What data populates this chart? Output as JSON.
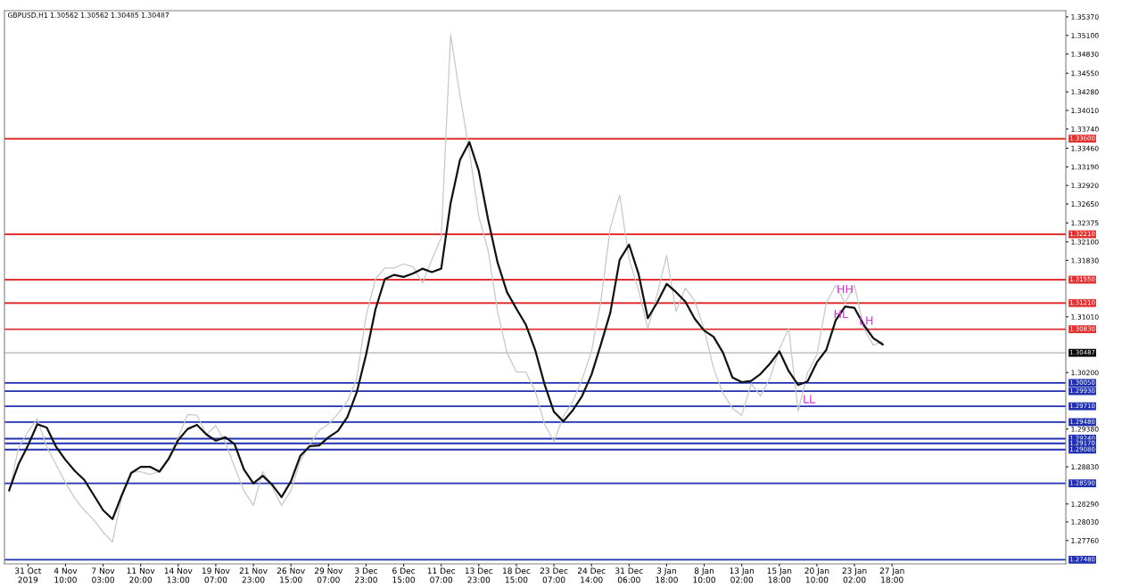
{
  "chart_data": {
    "type": "line",
    "title": "GBPUSD,H1 1.30562 1.30562 1.30485 1.30487",
    "categories": [
      null,
      null,
      "31 Oct 2019",
      null,
      null,
      null,
      "4 Nov 10:00",
      null,
      null,
      null,
      "7 Nov 03:00",
      null,
      null,
      null,
      "11 Nov 20:00",
      null,
      null,
      null,
      "14 Nov 13:00",
      null,
      null,
      null,
      "19 Nov 07:00",
      null,
      null,
      null,
      "21 Nov 23:00",
      null,
      null,
      null,
      "26 Nov 15:00",
      null,
      null,
      null,
      "29 Nov 07:00",
      null,
      null,
      null,
      "3 Dec 23:00",
      null,
      null,
      null,
      "6 Dec 15:00",
      null,
      null,
      null,
      "11 Dec 07:00",
      null,
      null,
      null,
      "13 Dec 23:00",
      null,
      null,
      null,
      "18 Dec 15:00",
      null,
      null,
      null,
      "23 Dec 07:00",
      null,
      null,
      null,
      "24 Dec 14:00",
      null,
      null,
      null,
      "31 Dec 06:00",
      null,
      null,
      null,
      "3 Jan 18:00",
      null,
      null,
      null,
      "8 Jan 10:00",
      null,
      null,
      null,
      "13 Jan 02:00",
      null,
      null,
      null,
      "15 Jan 18:00",
      null,
      null,
      null,
      "20 Jan 10:00",
      null,
      null,
      null,
      "23 Jan 02:00",
      null,
      null,
      null,
      "27 Jan 18:00",
      null,
      null,
      null,
      null,
      null,
      null,
      null,
      null,
      null,
      null,
      null,
      null,
      null,
      null,
      null,
      null,
      null,
      null
    ],
    "series": [
      {
        "color": "#c8c8c8",
        "values": [
          1.2846,
          1.2911,
          1.2934,
          1.2953,
          1.2912,
          1.2886,
          1.286,
          1.2837,
          1.282,
          1.2806,
          1.2788,
          1.2774,
          1.284,
          1.2876,
          1.2876,
          1.2872,
          1.2876,
          1.2897,
          1.2926,
          1.2959,
          1.2958,
          1.293,
          1.2943,
          1.2919,
          1.2883,
          1.2848,
          1.2827,
          1.2876,
          1.2854,
          1.2827,
          1.2848,
          1.2892,
          1.2915,
          1.2936,
          1.2945,
          1.296,
          1.2978,
          1.3011,
          1.3102,
          1.3156,
          1.3172,
          1.3172,
          1.3178,
          1.3174,
          1.315,
          1.3184,
          1.3216,
          1.3511,
          1.3423,
          1.3341,
          1.3247,
          1.3197,
          1.3109,
          1.3049,
          1.3021,
          1.3021,
          1.2994,
          1.2945,
          1.292,
          1.2956,
          1.2978,
          1.301,
          1.3051,
          1.3124,
          1.323,
          1.3278,
          1.3185,
          1.314,
          1.3084,
          1.3134,
          1.319,
          1.3109,
          1.3143,
          1.3124,
          1.3083,
          1.3026,
          1.299,
          1.2968,
          1.2958,
          1.3004,
          1.2986,
          1.3012,
          1.3054,
          1.3084,
          1.2964,
          1.302,
          1.3046,
          1.3121,
          1.3147,
          1.3121,
          1.3147,
          1.3084,
          1.306,
          1.3065,
          null,
          null,
          null,
          null,
          null,
          null,
          null,
          null,
          null,
          null,
          null,
          null,
          null,
          null,
          null,
          null,
          null,
          null,
          null
        ]
      },
      {
        "color": "#111111",
        "values": [
          1.2849,
          1.2887,
          1.2914,
          1.2945,
          1.294,
          1.2912,
          1.2893,
          1.2877,
          1.2864,
          1.2842,
          1.282,
          1.2807,
          1.2842,
          1.2874,
          1.2883,
          1.2883,
          1.2876,
          1.2895,
          1.2922,
          1.2938,
          1.2944,
          1.293,
          1.2921,
          1.2926,
          1.2916,
          1.2879,
          1.2859,
          1.287,
          1.2857,
          1.2839,
          1.2862,
          1.2899,
          1.2913,
          1.2914,
          1.2926,
          1.2935,
          1.2955,
          1.2991,
          1.3046,
          1.3112,
          1.3156,
          1.3162,
          1.3159,
          1.3164,
          1.3171,
          1.3166,
          1.3171,
          1.3266,
          1.3329,
          1.3355,
          1.3313,
          1.3242,
          1.318,
          1.3137,
          1.3113,
          1.309,
          1.3053,
          1.3003,
          1.2963,
          1.2949,
          1.2965,
          1.2986,
          1.3017,
          1.3061,
          1.3107,
          1.3184,
          1.3206,
          1.3164,
          1.3099,
          1.3122,
          1.3149,
          1.3137,
          1.3123,
          1.3098,
          1.3081,
          1.3072,
          1.3049,
          1.3013,
          1.3006,
          1.3008,
          1.3018,
          1.3033,
          1.3051,
          1.3022,
          1.3002,
          1.3007,
          1.3035,
          1.3053,
          1.3096,
          1.3116,
          1.3114,
          1.3089,
          1.307,
          1.3061,
          null,
          null,
          null,
          null,
          null,
          null,
          null,
          null,
          null,
          null,
          null,
          null,
          null,
          null,
          null,
          null,
          null,
          null,
          null
        ]
      }
    ],
    "ylim": [
      1.2742,
      1.3546
    ],
    "yticks": [
      {
        "value": 1.2776,
        "label": "1.27760"
      },
      {
        "value": 1.2803,
        "label": "1.28030"
      },
      {
        "value": 1.2829,
        "label": "1.28290"
      },
      {
        "value": 1.2883,
        "label": "1.28830"
      },
      {
        "value": 1.2938,
        "label": "1.29380"
      },
      {
        "value": 1.302,
        "label": "1.30200"
      },
      {
        "value": 1.3101,
        "label": "1.31010"
      },
      {
        "value": 1.3183,
        "label": "1.31830"
      },
      {
        "value": 1.321,
        "label": "1.32100"
      },
      {
        "value": 1.32375,
        "label": "1.32375"
      },
      {
        "value": 1.3265,
        "label": "1.32650"
      },
      {
        "value": 1.3292,
        "label": "1.32920"
      },
      {
        "value": 1.3319,
        "label": "1.33190"
      },
      {
        "value": 1.3346,
        "label": "1.33460"
      },
      {
        "value": 1.3374,
        "label": "1.33740"
      },
      {
        "value": 1.3401,
        "label": "1.34010"
      },
      {
        "value": 1.3428,
        "label": "1.34280"
      },
      {
        "value": 1.3455,
        "label": "1.34550"
      },
      {
        "value": 1.3483,
        "label": "1.34830"
      },
      {
        "value": 1.351,
        "label": "1.35100"
      },
      {
        "value": 1.3537,
        "label": "1.35370"
      }
    ],
    "grid": false,
    "ref_lines": [
      {
        "axis": "y",
        "value": 1.336,
        "label": "1.33600",
        "color": "#e03030"
      },
      {
        "axis": "y",
        "value": 1.3221,
        "label": "1.32210",
        "color": "#e03030"
      },
      {
        "axis": "y",
        "value": 1.3155,
        "label": "1.31550",
        "color": "#e03030"
      },
      {
        "axis": "y",
        "value": 1.3121,
        "label": "1.31210",
        "color": "#e03030"
      },
      {
        "axis": "y",
        "value": 1.3083,
        "label": "1.30830",
        "color": "#e03030"
      },
      {
        "axis": "y",
        "value": 1.30487,
        "label": "1.30487",
        "color": "#c8c8c8"
      },
      {
        "axis": "y",
        "value": 1.3005,
        "label": "1.30050",
        "color": "#2030b0"
      },
      {
        "axis": "y",
        "value": 1.2993,
        "label": "1.29930",
        "color": "#2030b0"
      },
      {
        "axis": "y",
        "value": 1.2971,
        "label": "1.29710",
        "color": "#2030b0"
      },
      {
        "axis": "y",
        "value": 1.2948,
        "label": "1.29480",
        "color": "#2030b0"
      },
      {
        "axis": "y",
        "value": 1.2924,
        "label": "1.29240",
        "color": "#2030b0"
      },
      {
        "axis": "y",
        "value": 1.2917,
        "label": "1.29170",
        "color": "#2030b0"
      },
      {
        "axis": "y",
        "value": 1.2908,
        "label": "1.29080",
        "color": "#2030b0"
      },
      {
        "axis": "y",
        "value": 1.2859,
        "label": "1.28590",
        "color": "#2030b0"
      },
      {
        "axis": "y",
        "value": 1.2748,
        "label": "1.27480",
        "color": "#2030b0"
      }
    ],
    "annotations": [
      "HH",
      "HL",
      "LH",
      "LL"
    ]
  }
}
